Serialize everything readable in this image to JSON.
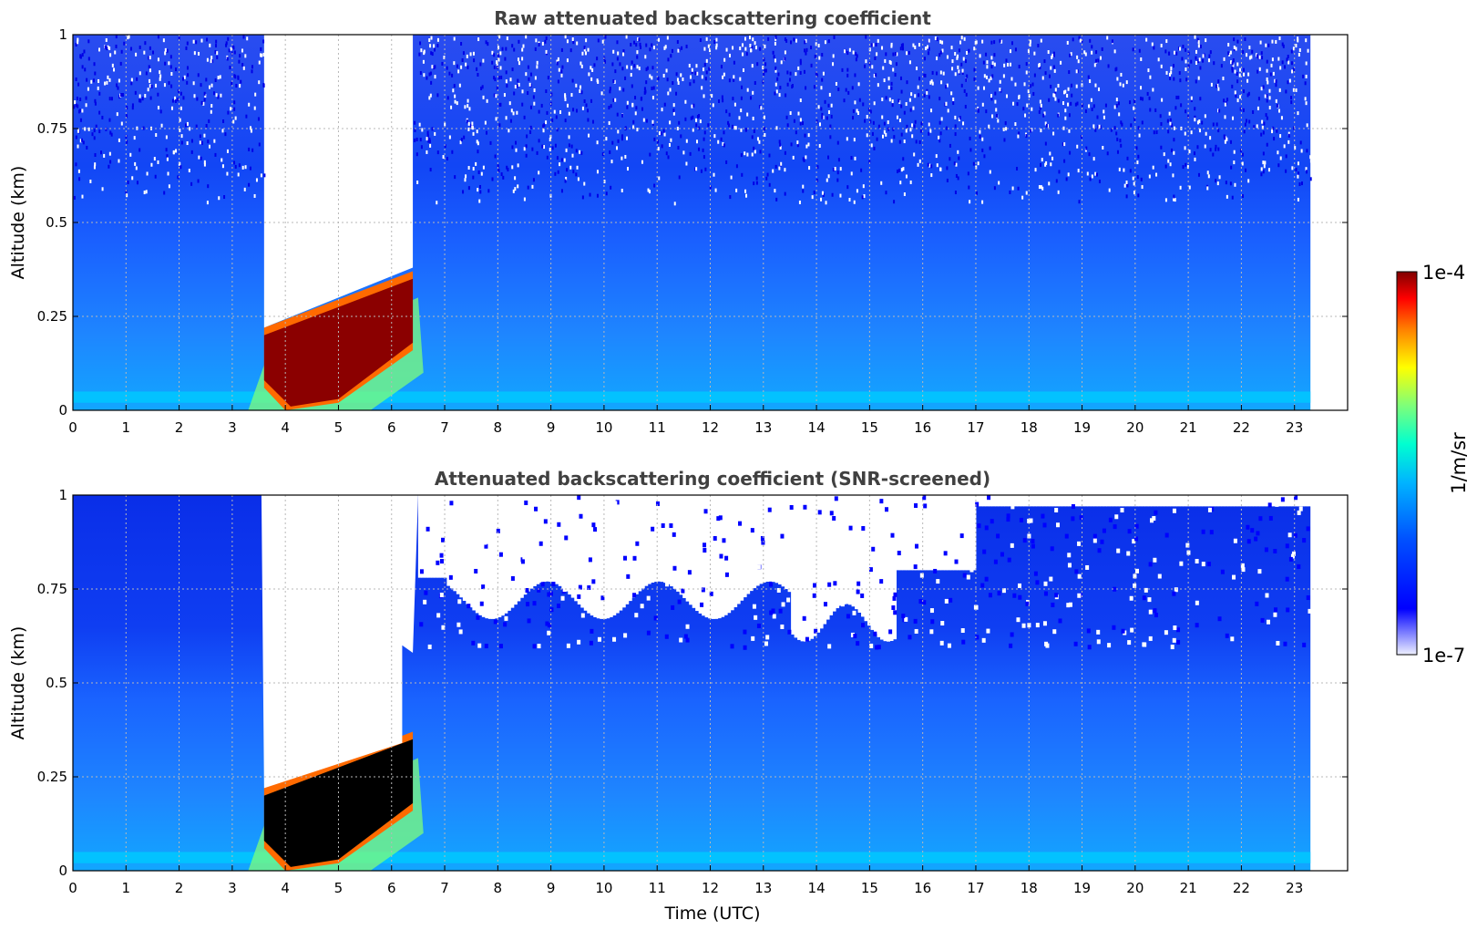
{
  "chart_data": [
    {
      "type": "heatmap",
      "title": "Raw attenuated backscattering coefficient",
      "xlabel": "",
      "ylabel": "Altitude (km)",
      "xlim": [
        0,
        24
      ],
      "ylim": [
        0,
        1
      ],
      "x_ticks": [
        "0",
        "1",
        "2",
        "3",
        "4",
        "5",
        "6",
        "7",
        "8",
        "9",
        "10",
        "11",
        "12",
        "13",
        "14",
        "15",
        "16",
        "17",
        "18",
        "19",
        "20",
        "21",
        "22",
        "23"
      ],
      "y_ticks": [
        "0",
        "0.25",
        "0.5",
        "0.75",
        "1"
      ],
      "grid": true,
      "data_end_time": 23.3,
      "features": {
        "fog_layer": {
          "time_start": 3.6,
          "time_end": 6.4,
          "top_altitude_start": 0.2,
          "top_altitude_end": 0.35
        },
        "no_signal_above_fog": {
          "time_start": 3.6,
          "time_end": 6.4
        },
        "noisy_upper_region_above_altitude": 0.5
      }
    },
    {
      "type": "heatmap",
      "title": "Attenuated backscattering coefficient (SNR-screened)",
      "xlabel": "Time (UTC)",
      "ylabel": "Altitude (km)",
      "xlim": [
        0,
        24
      ],
      "ylim": [
        0,
        1
      ],
      "x_ticks": [
        "0",
        "1",
        "2",
        "3",
        "4",
        "5",
        "6",
        "7",
        "8",
        "9",
        "10",
        "11",
        "12",
        "13",
        "14",
        "15",
        "16",
        "17",
        "18",
        "19",
        "20",
        "21",
        "22",
        "23"
      ],
      "y_ticks": [
        "0",
        "0.25",
        "0.5",
        "0.75",
        "1"
      ],
      "grid": true,
      "data_end_time": 23.3,
      "features": {
        "fog_layer": {
          "time_start": 3.6,
          "time_end": 6.4,
          "top_altitude_start": 0.2,
          "top_altitude_end": 0.35
        },
        "screened_region_altitude_range": [
          0.6,
          1.0
        ]
      }
    }
  ],
  "colorbar": {
    "label": "1/m/sr",
    "max_label": "1e-4",
    "min_label": "1e-7",
    "scale": "log",
    "colormap": "jet"
  },
  "colors": {
    "background_blue": "#0a3cf0",
    "mid_blue": "#1e78ff",
    "cyan": "#00c8ff",
    "fog_red": "#8b0000",
    "screen_black": "#000000",
    "title_gray": "#404040"
  }
}
